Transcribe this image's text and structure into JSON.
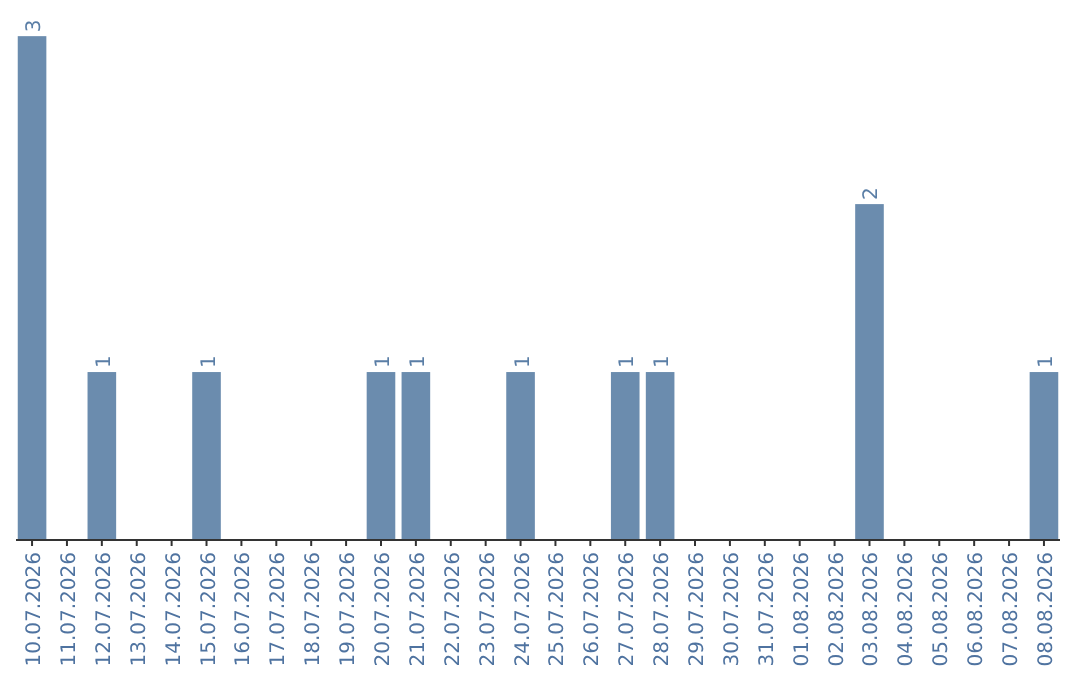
{
  "chart_data": {
    "type": "bar",
    "categories": [
      "10.07.2026",
      "11.07.2026",
      "12.07.2026",
      "13.07.2026",
      "14.07.2026",
      "15.07.2026",
      "16.07.2026",
      "17.07.2026",
      "18.07.2026",
      "19.07.2026",
      "20.07.2026",
      "21.07.2026",
      "22.07.2026",
      "23.07.2026",
      "24.07.2026",
      "25.07.2026",
      "26.07.2026",
      "27.07.2026",
      "28.07.2026",
      "29.07.2026",
      "30.07.2026",
      "31.07.2026",
      "01.08.2026",
      "02.08.2026",
      "03.08.2026",
      "04.08.2026",
      "05.08.2026",
      "06.08.2026",
      "07.08.2026",
      "08.08.2026"
    ],
    "values": [
      3,
      0,
      1,
      0,
      0,
      1,
      0,
      0,
      0,
      0,
      1,
      1,
      0,
      0,
      1,
      0,
      0,
      1,
      1,
      0,
      0,
      0,
      0,
      0,
      2,
      0,
      0,
      0,
      0,
      1
    ],
    "value_labels": [
      "3",
      null,
      "1",
      null,
      null,
      "1",
      null,
      null,
      null,
      null,
      "1",
      "1",
      null,
      null,
      "1",
      null,
      null,
      "1",
      "1",
      null,
      null,
      null,
      null,
      null,
      "2",
      null,
      null,
      null,
      null,
      "1"
    ],
    "color": "#6b8cae"
  }
}
